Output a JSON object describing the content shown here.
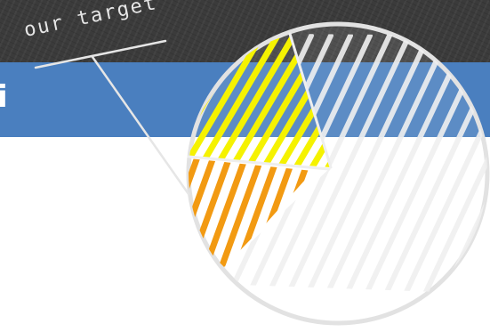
{
  "annotation": {
    "text": "our target"
  },
  "edge_glyph": "i",
  "colors": {
    "dark_band": "#3b3b3b",
    "blue_band": "#4a7fbf",
    "highlight_yellow": "#f5f200",
    "highlight_orange": "#f29a12",
    "chalk": "#f0f0f0",
    "outline": "#e2e2e2"
  },
  "pie": {
    "slices": [
      {
        "color_name": "yellow-hatched",
        "fraction": 0.08
      },
      {
        "color_name": "orange-hatched",
        "fraction": 0.11
      },
      {
        "color_name": "white-hatched",
        "fraction": 0.81
      }
    ]
  }
}
